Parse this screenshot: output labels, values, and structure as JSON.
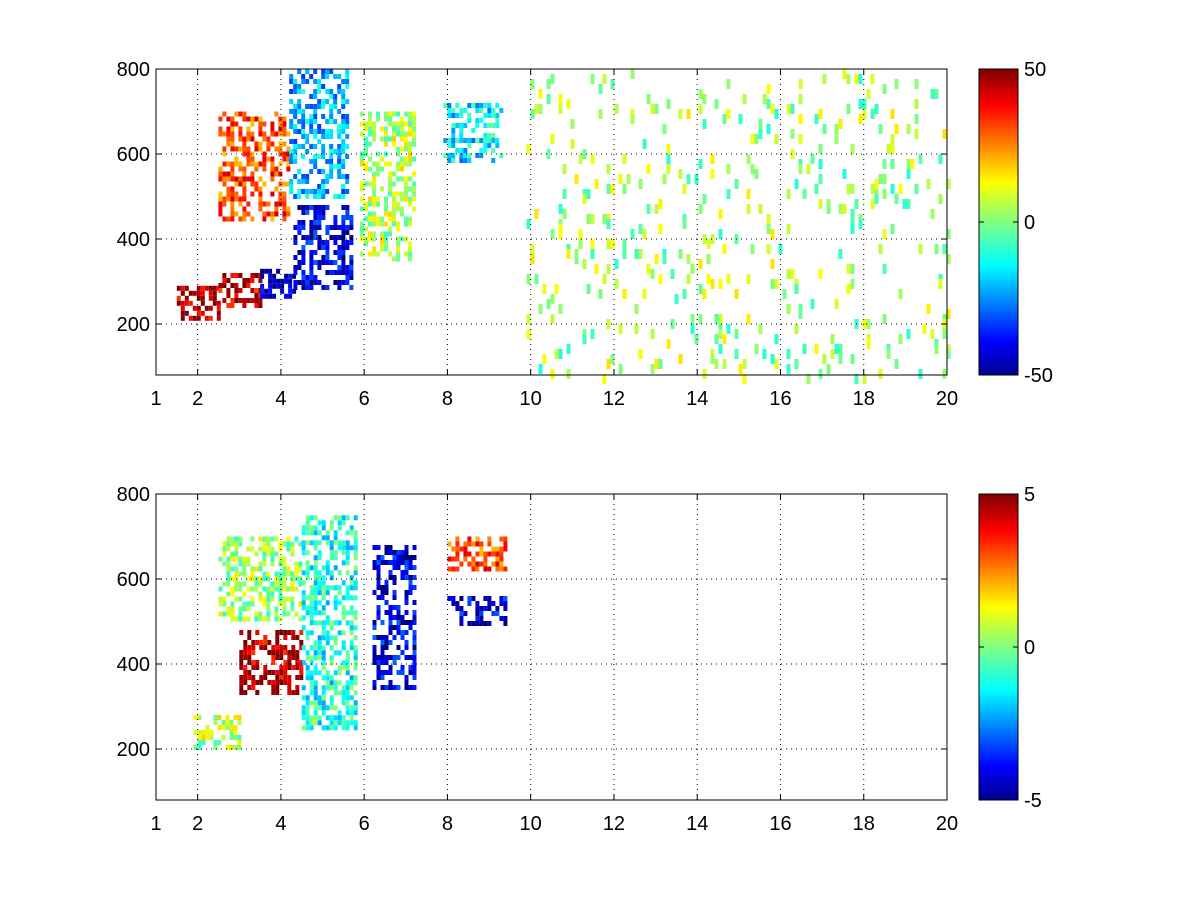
{
  "chart_data": [
    {
      "type": "heatmap",
      "title": "",
      "xlabel": "",
      "ylabel": "",
      "xlim": [
        1,
        20
      ],
      "ylim": [
        80,
        800
      ],
      "x_ticks": [
        "1",
        "2",
        "4",
        "6",
        "8",
        "10",
        "12",
        "14",
        "16",
        "18",
        "20"
      ],
      "x_tick_values": [
        1,
        2,
        4,
        6,
        8,
        10,
        12,
        14,
        16,
        18,
        20
      ],
      "y_ticks": [
        "200",
        "400",
        "600",
        "800"
      ],
      "y_tick_values": [
        200,
        400,
        600,
        800
      ],
      "grid": true,
      "colormap": "jet",
      "colorbar": {
        "min": -50,
        "max": 50,
        "tick_labels": [
          "50",
          "0",
          "-50"
        ],
        "tick_values": [
          50,
          0,
          -50
        ]
      },
      "regions": [
        {
          "x": [
            1.5,
            2.5
          ],
          "y": [
            210,
            290
          ],
          "value": 45
        },
        {
          "x": [
            2.5,
            3.5
          ],
          "y": [
            240,
            320
          ],
          "value": 42
        },
        {
          "x": [
            3.5,
            4.3
          ],
          "y": [
            260,
            330
          ],
          "value": -45
        },
        {
          "x": [
            4.3,
            5.7
          ],
          "y": [
            280,
            480
          ],
          "value": -40
        },
        {
          "x": [
            2.5,
            4.2
          ],
          "y": [
            450,
            700
          ],
          "value": 30
        },
        {
          "x": [
            4.2,
            5.6
          ],
          "y": [
            500,
            800
          ],
          "value": -20
        },
        {
          "x": [
            5.9,
            7.2
          ],
          "y": [
            350,
            700
          ],
          "value": 5
        },
        {
          "x": [
            7.9,
            9.3
          ],
          "y": [
            580,
            720
          ],
          "value": -15
        },
        {
          "x": [
            9.9,
            20
          ],
          "y": [
            80,
            800
          ],
          "value": 3
        }
      ]
    },
    {
      "type": "heatmap",
      "title": "",
      "xlabel": "",
      "ylabel": "",
      "xlim": [
        1,
        20
      ],
      "ylim": [
        80,
        800
      ],
      "x_ticks": [
        "1",
        "2",
        "4",
        "6",
        "8",
        "10",
        "12",
        "14",
        "16",
        "18",
        "20"
      ],
      "x_tick_values": [
        1,
        2,
        4,
        6,
        8,
        10,
        12,
        14,
        16,
        18,
        20
      ],
      "y_ticks": [
        "200",
        "400",
        "600",
        "800"
      ],
      "y_tick_values": [
        200,
        400,
        600,
        800
      ],
      "grid": true,
      "colormap": "jet",
      "colorbar": {
        "min": -5,
        "max": 5,
        "tick_labels": [
          "5",
          "0",
          "-5"
        ],
        "tick_values": [
          5,
          0,
          -5
        ]
      },
      "regions": [
        {
          "x": [
            1.9,
            3.0
          ],
          "y": [
            200,
            280
          ],
          "value": 0.5
        },
        {
          "x": [
            3.0,
            4.5
          ],
          "y": [
            330,
            480
          ],
          "value": 4.5
        },
        {
          "x": [
            2.5,
            4.5
          ],
          "y": [
            500,
            700
          ],
          "value": 0.3
        },
        {
          "x": [
            4.5,
            5.8
          ],
          "y": [
            250,
            750
          ],
          "value": -1
        },
        {
          "x": [
            6.2,
            7.2
          ],
          "y": [
            350,
            680
          ],
          "value": -4
        },
        {
          "x": [
            8.0,
            9.4
          ],
          "y": [
            620,
            700
          ],
          "value": 3
        },
        {
          "x": [
            8.0,
            9.4
          ],
          "y": [
            500,
            560
          ],
          "value": -4
        }
      ]
    }
  ]
}
